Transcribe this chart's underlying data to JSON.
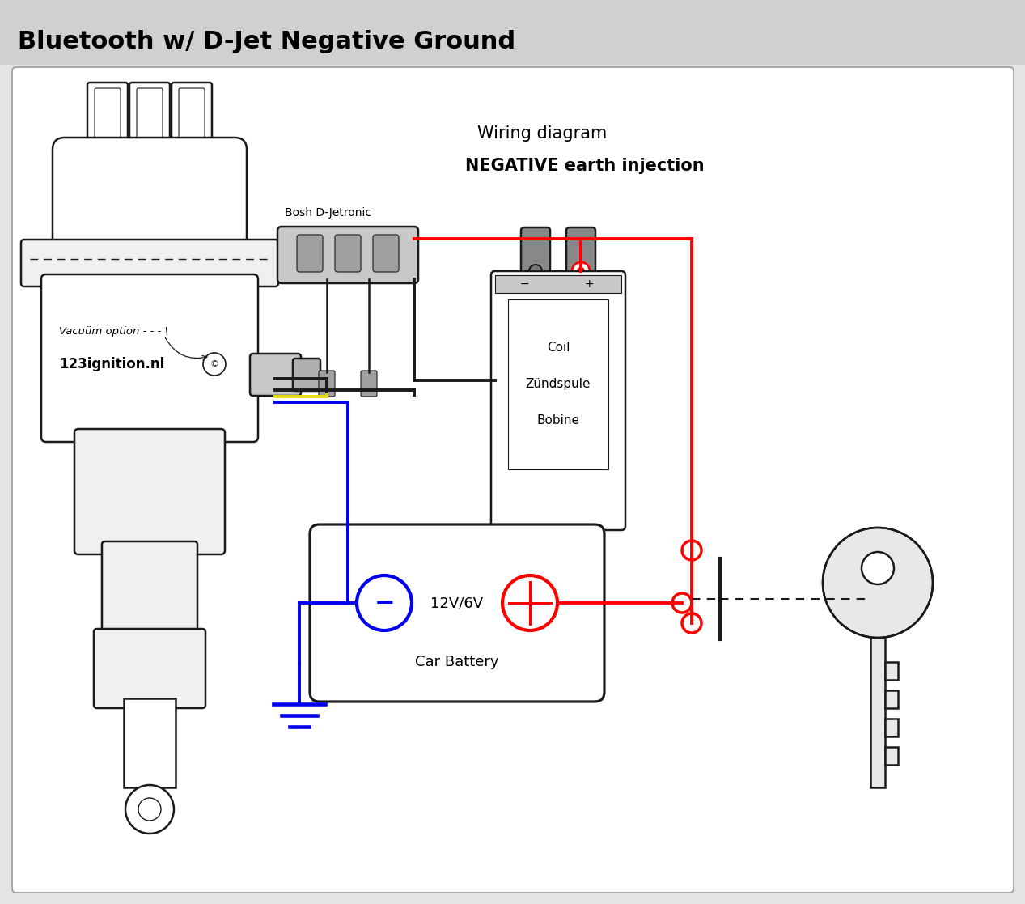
{
  "title": "Bluetooth w/ D-Jet Negative Ground",
  "subtitle1": "Wiring diagram",
  "subtitle2": "NEGATIVE earth injection",
  "label_vacuum": "Vacuüm option - - - \\",
  "label_ignition": "123ignition.nl",
  "label_bosch": "Bosh D-Jetronic",
  "label_coil1": "Coil",
  "label_coil2": "Zündspule",
  "label_coil3": "Bobine",
  "label_battery": "Car Battery",
  "label_voltage": "12V/6V",
  "header_color": "#d0d0d0",
  "bg_diagram": "#ffffff",
  "bg_outer": "#e4e4e4",
  "line_color": "#1a1a1a",
  "part_fill": "#f0f0f0",
  "gray_fill": "#c8c8c8",
  "red_color": "#ff0000",
  "blue_color": "#0000ee",
  "yellow_color": "#e8e000",
  "title_fontsize": 22,
  "sub_fontsize": 15
}
